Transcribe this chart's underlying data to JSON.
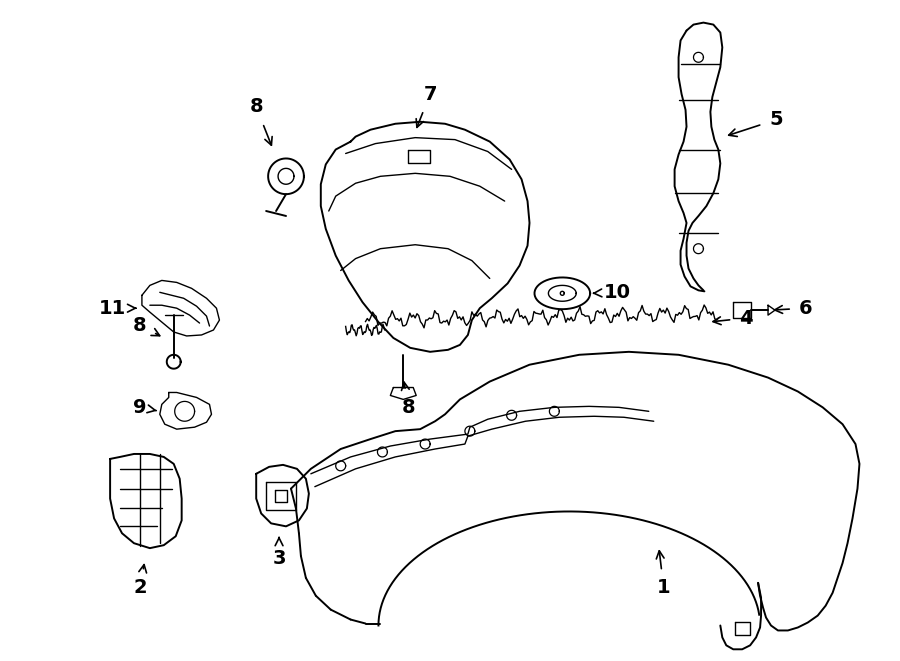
{
  "bg_color": "#ffffff",
  "line_color": "#000000",
  "text_color": "#000000",
  "fig_width": 9.0,
  "fig_height": 6.61,
  "dpi": 100
}
